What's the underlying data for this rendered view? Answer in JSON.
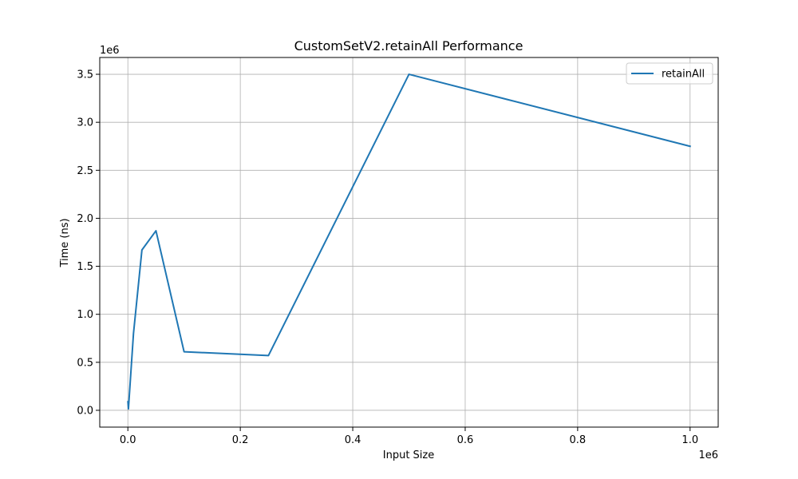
{
  "chart_data": {
    "type": "line",
    "title": "CustomSetV2.retainAll Performance",
    "xlabel": "Input Size",
    "ylabel": "Time (ns)",
    "x_offset_label": "1e6",
    "y_offset_label": "1e6",
    "xlim": [
      -50000,
      1050000
    ],
    "ylim": [
      -175000,
      3675000
    ],
    "xticks": [
      0,
      200000,
      400000,
      600000,
      800000,
      1000000
    ],
    "xtick_labels": [
      "0.0",
      "0.2",
      "0.4",
      "0.6",
      "0.8",
      "1.0"
    ],
    "yticks": [
      0,
      500000,
      1000000,
      1500000,
      2000000,
      2500000,
      3000000,
      3500000
    ],
    "ytick_labels": [
      "0.0",
      "0.5",
      "1.0",
      "1.5",
      "2.0",
      "2.5",
      "3.0",
      "3.5"
    ],
    "grid": true,
    "legend_position": "top-right",
    "line_color": "#1f77b4",
    "series": [
      {
        "name": "retainAll",
        "x": [
          100,
          1000,
          10000,
          25000,
          50000,
          100000,
          250000,
          500000,
          1000000
        ],
        "y": [
          90000,
          15000,
          800000,
          1670000,
          1870000,
          610000,
          570000,
          3500000,
          2750000
        ]
      }
    ]
  }
}
